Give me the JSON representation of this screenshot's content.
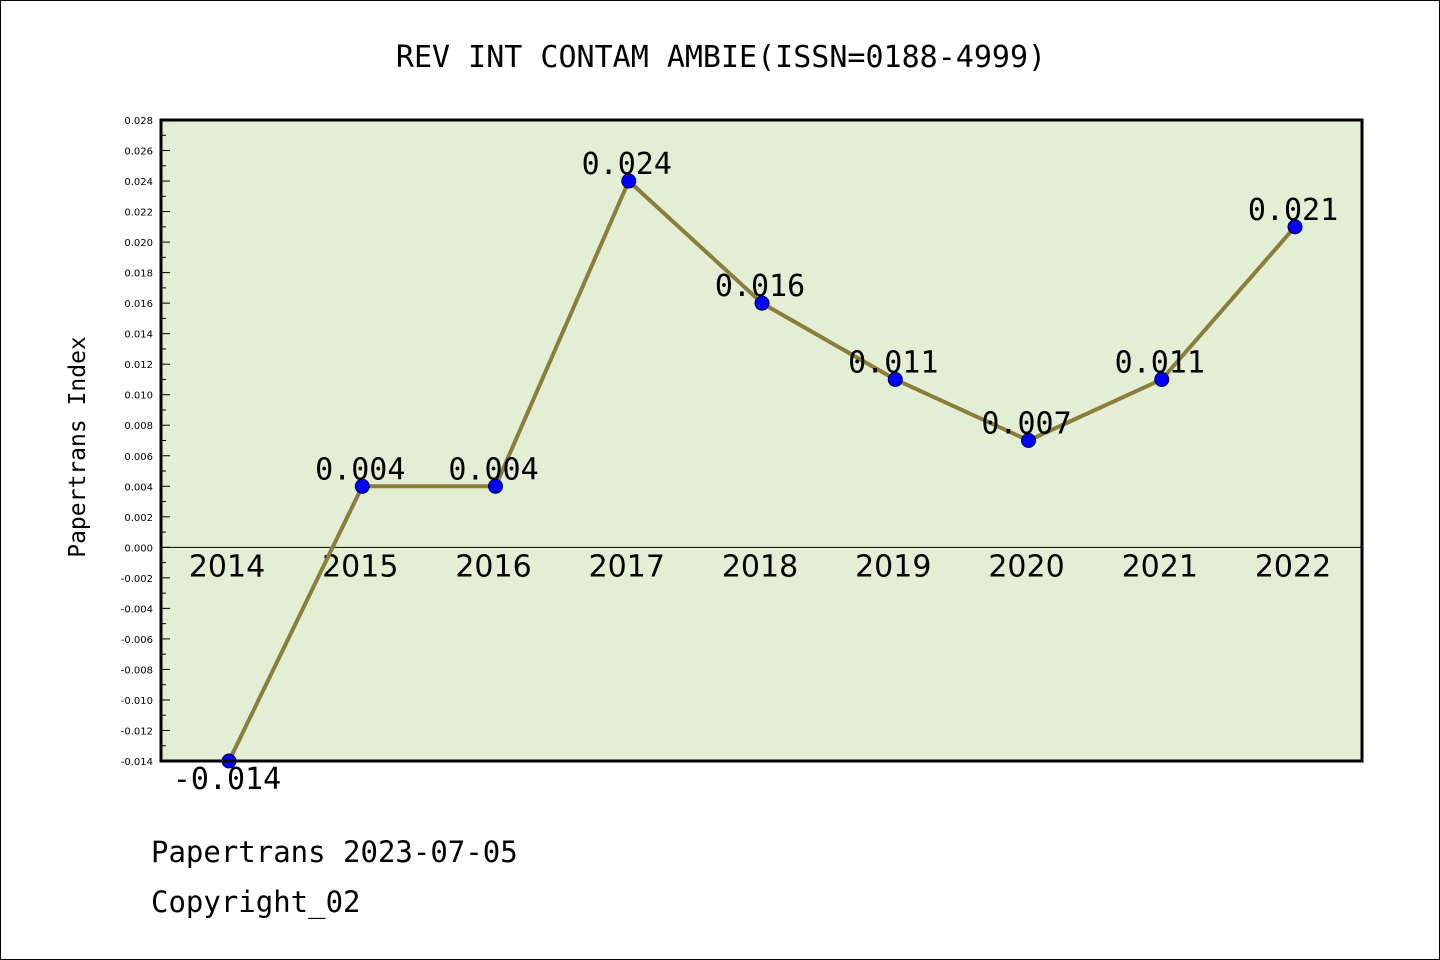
{
  "chart_data": {
    "type": "line",
    "title": "REV INT CONTAM AMBIE(ISSN=0188-4999)",
    "ylabel": "Papertrans Index",
    "xlabel": "",
    "x": [
      "2014",
      "2015",
      "2016",
      "2017",
      "2018",
      "2019",
      "2020",
      "2021",
      "2022"
    ],
    "series": [
      {
        "values": [
          -0.014,
          0.004,
          0.004,
          0.024,
          0.016,
          0.011,
          0.007,
          0.011,
          0.021
        ],
        "labels": [
          "-0.014",
          "0.004",
          "0.004",
          "0.024",
          "0.016",
          "0.011",
          "0.007",
          "0.011",
          "0.021"
        ]
      }
    ],
    "ylim": [
      -0.014,
      0.028
    ],
    "yticks": [
      "0.028",
      "0.026",
      "0.024",
      "0.022",
      "0.020",
      "0.018",
      "0.016",
      "0.014",
      "0.012",
      "0.010",
      "0.008",
      "0.006",
      "0.004",
      "0.002",
      "0.000",
      "-0.002",
      "-0.004",
      "-0.006",
      "-0.008",
      "-0.010",
      "-0.012",
      "-0.014"
    ],
    "grid": false,
    "legend": "none",
    "colors": {
      "plot_background": "#e2efd4",
      "line": "#8b7d3a",
      "marker": "#0000ff"
    }
  },
  "footer": {
    "line1": "Papertrans 2023-07-05",
    "line2": "Copyright_02"
  }
}
